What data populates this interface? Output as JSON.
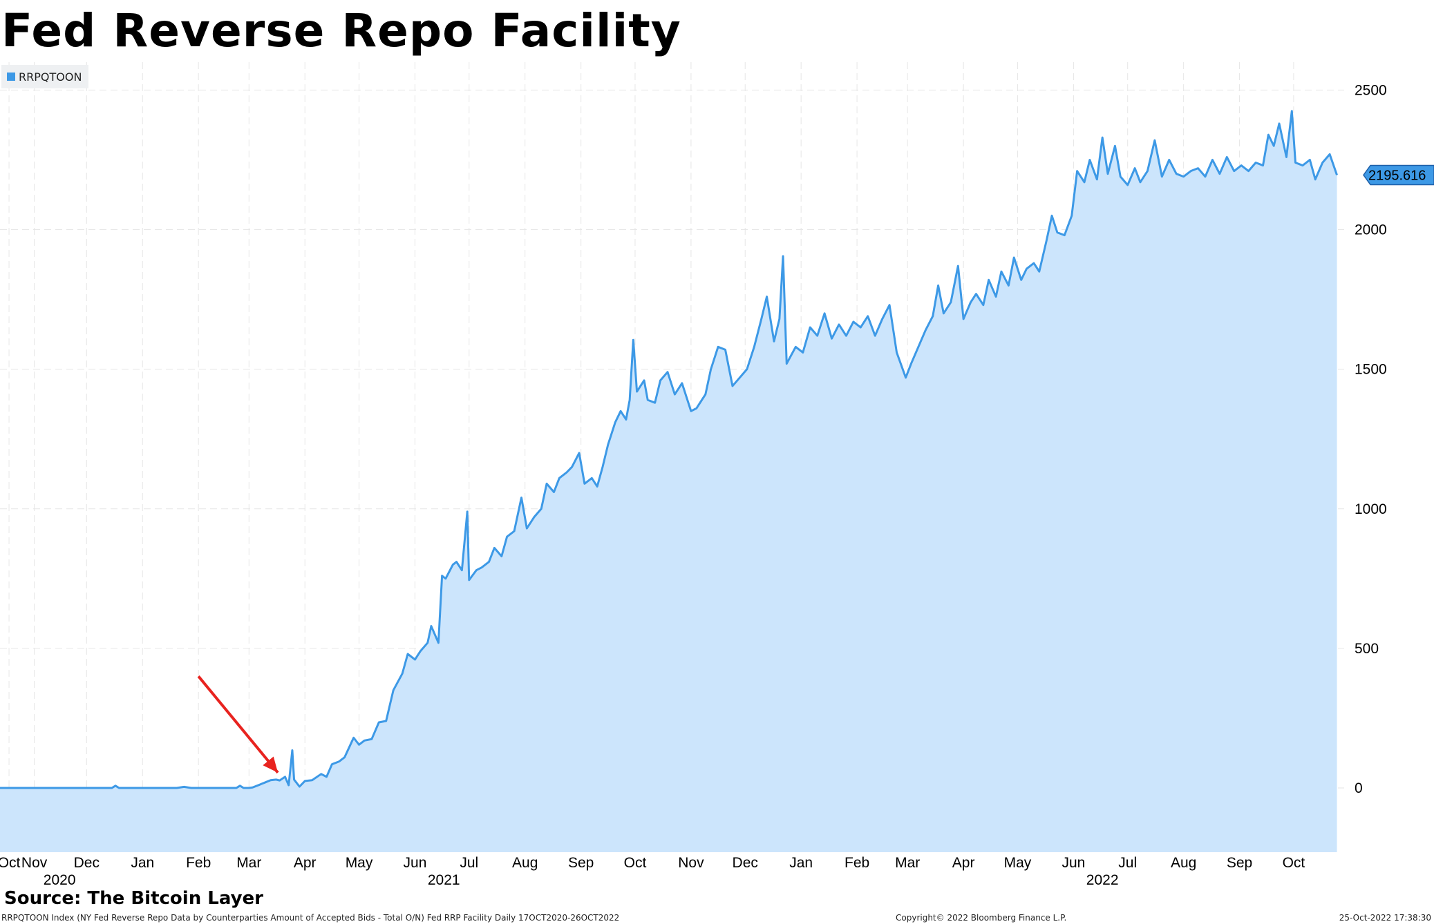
{
  "title": "Fed Reverse Repo Facility",
  "legend": {
    "label": "RRPQTOON",
    "color": "#3d99e6"
  },
  "source": "Source: The Bitcoin Layer",
  "footer": {
    "description": "RRPQTOON Index (NY Fed Reverse Repo Data by Counterparties Amount of Accepted Bids - Total O/N) Fed RRP Facility  Daily 17OCT2020-26OCT2022",
    "copyright": "Copyright© 2022 Bloomberg Finance L.P.",
    "timestamp": "25-Oct-2022 17:38:30"
  },
  "chart_data": {
    "type": "area",
    "series": [
      {
        "name": "RRPQTOON",
        "color": "#3d99e6",
        "fill": "#cce5fc"
      }
    ],
    "x_ticks": [
      {
        "label": "Oct",
        "date": "2020-10-19"
      },
      {
        "label": "Nov",
        "date": "2020-11-02"
      },
      {
        "label": "Dec",
        "date": "2020-12-01"
      },
      {
        "label": "Jan",
        "date": "2021-01-01"
      },
      {
        "label": "Feb",
        "date": "2021-02-01"
      },
      {
        "label": "Mar",
        "date": "2021-03-01"
      },
      {
        "label": "Apr",
        "date": "2021-04-01"
      },
      {
        "label": "May",
        "date": "2021-05-01"
      },
      {
        "label": "Jun",
        "date": "2021-06-01"
      },
      {
        "label": "Jul",
        "date": "2021-07-01"
      },
      {
        "label": "Aug",
        "date": "2021-08-01"
      },
      {
        "label": "Sep",
        "date": "2021-09-01"
      },
      {
        "label": "Oct",
        "date": "2021-10-01"
      },
      {
        "label": "Nov",
        "date": "2021-11-01"
      },
      {
        "label": "Dec",
        "date": "2021-12-01"
      },
      {
        "label": "Jan",
        "date": "2022-01-01"
      },
      {
        "label": "Feb",
        "date": "2022-02-01"
      },
      {
        "label": "Mar",
        "date": "2022-03-01"
      },
      {
        "label": "Apr",
        "date": "2022-04-01"
      },
      {
        "label": "May",
        "date": "2022-05-01"
      },
      {
        "label": "Jun",
        "date": "2022-06-01"
      },
      {
        "label": "Jul",
        "date": "2022-07-01"
      },
      {
        "label": "Aug",
        "date": "2022-08-01"
      },
      {
        "label": "Sep",
        "date": "2022-09-01"
      },
      {
        "label": "Oct",
        "date": "2022-10-01"
      }
    ],
    "year_labels": [
      {
        "label": "2020",
        "date": "2020-11-16"
      },
      {
        "label": "2021",
        "date": "2021-06-17"
      },
      {
        "label": "2022",
        "date": "2022-06-17"
      }
    ],
    "y_ticks": [
      0,
      500,
      1000,
      1500,
      2000,
      2500
    ],
    "xlim": [
      "2020-10-14",
      "2022-10-29"
    ],
    "ylim": [
      -230,
      2600
    ],
    "y_axis_side": "right",
    "grid": true,
    "legend_position": "top-left",
    "last_value": 2195.616,
    "annotations": [
      {
        "type": "arrow",
        "color": "#e8231f",
        "from": [
          "2021-02-01",
          400
        ],
        "to": [
          "2021-03-17",
          55
        ]
      }
    ],
    "points": [
      [
        "2020-10-14",
        0
      ],
      [
        "2020-12-15",
        0
      ],
      [
        "2020-12-17",
        8
      ],
      [
        "2020-12-19",
        0
      ],
      [
        "2021-01-20",
        0
      ],
      [
        "2021-01-24",
        4
      ],
      [
        "2021-01-28",
        0
      ],
      [
        "2021-02-22",
        0
      ],
      [
        "2021-02-24",
        8
      ],
      [
        "2021-02-26",
        0
      ],
      [
        "2021-03-01",
        0
      ],
      [
        "2021-03-03",
        2
      ],
      [
        "2021-03-07",
        12
      ],
      [
        "2021-03-10",
        20
      ],
      [
        "2021-03-13",
        28
      ],
      [
        "2021-03-16",
        30
      ],
      [
        "2021-03-18",
        27
      ],
      [
        "2021-03-21",
        40
      ],
      [
        "2021-03-23",
        10
      ],
      [
        "2021-03-25",
        135
      ],
      [
        "2021-03-26",
        30
      ],
      [
        "2021-03-29",
        5
      ],
      [
        "2021-04-01",
        25
      ],
      [
        "2021-04-05",
        28
      ],
      [
        "2021-04-10",
        50
      ],
      [
        "2021-04-13",
        40
      ],
      [
        "2021-04-16",
        85
      ],
      [
        "2021-04-20",
        95
      ],
      [
        "2021-04-23",
        110
      ],
      [
        "2021-04-28",
        180
      ],
      [
        "2021-05-01",
        155
      ],
      [
        "2021-05-04",
        170
      ],
      [
        "2021-05-08",
        175
      ],
      [
        "2021-05-12",
        235
      ],
      [
        "2021-05-16",
        240
      ],
      [
        "2021-05-20",
        350
      ],
      [
        "2021-05-25",
        410
      ],
      [
        "2021-05-28",
        480
      ],
      [
        "2021-06-01",
        460
      ],
      [
        "2021-06-04",
        490
      ],
      [
        "2021-06-08",
        520
      ],
      [
        "2021-06-10",
        580
      ],
      [
        "2021-06-14",
        520
      ],
      [
        "2021-06-16",
        760
      ],
      [
        "2021-06-18",
        750
      ],
      [
        "2021-06-22",
        800
      ],
      [
        "2021-06-24",
        810
      ],
      [
        "2021-06-27",
        780
      ],
      [
        "2021-06-30",
        990
      ],
      [
        "2021-07-01",
        745
      ],
      [
        "2021-07-05",
        780
      ],
      [
        "2021-07-08",
        790
      ],
      [
        "2021-07-12",
        810
      ],
      [
        "2021-07-15",
        860
      ],
      [
        "2021-07-19",
        830
      ],
      [
        "2021-07-22",
        900
      ],
      [
        "2021-07-26",
        920
      ],
      [
        "2021-07-30",
        1040
      ],
      [
        "2021-08-02",
        930
      ],
      [
        "2021-08-06",
        970
      ],
      [
        "2021-08-10",
        1000
      ],
      [
        "2021-08-13",
        1090
      ],
      [
        "2021-08-17",
        1060
      ],
      [
        "2021-08-20",
        1110
      ],
      [
        "2021-08-24",
        1130
      ],
      [
        "2021-08-27",
        1150
      ],
      [
        "2021-08-31",
        1200
      ],
      [
        "2021-09-03",
        1090
      ],
      [
        "2021-09-07",
        1110
      ],
      [
        "2021-09-10",
        1080
      ],
      [
        "2021-09-13",
        1150
      ],
      [
        "2021-09-16",
        1230
      ],
      [
        "2021-09-20",
        1310
      ],
      [
        "2021-09-23",
        1350
      ],
      [
        "2021-09-26",
        1320
      ],
      [
        "2021-09-28",
        1390
      ],
      [
        "2021-09-30",
        1605
      ],
      [
        "2021-10-02",
        1420
      ],
      [
        "2021-10-06",
        1460
      ],
      [
        "2021-10-08",
        1390
      ],
      [
        "2021-10-12",
        1380
      ],
      [
        "2021-10-15",
        1460
      ],
      [
        "2021-10-19",
        1490
      ],
      [
        "2021-10-23",
        1410
      ],
      [
        "2021-10-27",
        1450
      ],
      [
        "2021-11-01",
        1350
      ],
      [
        "2021-11-04",
        1360
      ],
      [
        "2021-11-09",
        1410
      ],
      [
        "2021-11-12",
        1500
      ],
      [
        "2021-11-16",
        1580
      ],
      [
        "2021-11-20",
        1570
      ],
      [
        "2021-11-24",
        1440
      ],
      [
        "2021-11-28",
        1470
      ],
      [
        "2021-12-02",
        1500
      ],
      [
        "2021-12-06",
        1580
      ],
      [
        "2021-12-10",
        1680
      ],
      [
        "2021-12-13",
        1760
      ],
      [
        "2021-12-17",
        1600
      ],
      [
        "2021-12-20",
        1680
      ],
      [
        "2021-12-22",
        1905
      ],
      [
        "2021-12-24",
        1520
      ],
      [
        "2021-12-29",
        1580
      ],
      [
        "2022-01-02",
        1560
      ],
      [
        "2022-01-06",
        1650
      ],
      [
        "2022-01-10",
        1620
      ],
      [
        "2022-01-14",
        1700
      ],
      [
        "2022-01-18",
        1610
      ],
      [
        "2022-01-22",
        1660
      ],
      [
        "2022-01-26",
        1620
      ],
      [
        "2022-01-30",
        1670
      ],
      [
        "2022-02-03",
        1650
      ],
      [
        "2022-02-07",
        1690
      ],
      [
        "2022-02-11",
        1620
      ],
      [
        "2022-02-15",
        1680
      ],
      [
        "2022-02-19",
        1730
      ],
      [
        "2022-02-23",
        1560
      ],
      [
        "2022-02-28",
        1470
      ],
      [
        "2022-03-03",
        1520
      ],
      [
        "2022-03-07",
        1580
      ],
      [
        "2022-03-11",
        1640
      ],
      [
        "2022-03-15",
        1690
      ],
      [
        "2022-03-18",
        1800
      ],
      [
        "2022-03-21",
        1700
      ],
      [
        "2022-03-25",
        1740
      ],
      [
        "2022-03-29",
        1870
      ],
      [
        "2022-04-01",
        1680
      ],
      [
        "2022-04-05",
        1740
      ],
      [
        "2022-04-08",
        1770
      ],
      [
        "2022-04-12",
        1730
      ],
      [
        "2022-04-15",
        1820
      ],
      [
        "2022-04-19",
        1760
      ],
      [
        "2022-04-22",
        1850
      ],
      [
        "2022-04-26",
        1800
      ],
      [
        "2022-04-29",
        1900
      ],
      [
        "2022-05-03",
        1820
      ],
      [
        "2022-05-06",
        1860
      ],
      [
        "2022-05-10",
        1880
      ],
      [
        "2022-05-13",
        1850
      ],
      [
        "2022-05-17",
        1960
      ],
      [
        "2022-05-20",
        2050
      ],
      [
        "2022-05-23",
        1990
      ],
      [
        "2022-05-27",
        1980
      ],
      [
        "2022-05-31",
        2050
      ],
      [
        "2022-06-03",
        2210
      ],
      [
        "2022-06-07",
        2170
      ],
      [
        "2022-06-10",
        2250
      ],
      [
        "2022-06-14",
        2180
      ],
      [
        "2022-06-17",
        2330
      ],
      [
        "2022-06-20",
        2200
      ],
      [
        "2022-06-24",
        2300
      ],
      [
        "2022-06-27",
        2190
      ],
      [
        "2022-07-01",
        2160
      ],
      [
        "2022-07-05",
        2220
      ],
      [
        "2022-07-08",
        2170
      ],
      [
        "2022-07-12",
        2210
      ],
      [
        "2022-07-16",
        2320
      ],
      [
        "2022-07-20",
        2190
      ],
      [
        "2022-07-24",
        2250
      ],
      [
        "2022-07-28",
        2200
      ],
      [
        "2022-08-01",
        2190
      ],
      [
        "2022-08-05",
        2210
      ],
      [
        "2022-08-09",
        2220
      ],
      [
        "2022-08-13",
        2190
      ],
      [
        "2022-08-17",
        2250
      ],
      [
        "2022-08-21",
        2200
      ],
      [
        "2022-08-25",
        2260
      ],
      [
        "2022-08-29",
        2210
      ],
      [
        "2022-09-02",
        2230
      ],
      [
        "2022-09-06",
        2210
      ],
      [
        "2022-09-10",
        2240
      ],
      [
        "2022-09-14",
        2230
      ],
      [
        "2022-09-17",
        2340
      ],
      [
        "2022-09-20",
        2300
      ],
      [
        "2022-09-23",
        2380
      ],
      [
        "2022-09-27",
        2260
      ],
      [
        "2022-09-30",
        2425
      ],
      [
        "2022-10-02",
        2240
      ],
      [
        "2022-10-06",
        2230
      ],
      [
        "2022-10-10",
        2250
      ],
      [
        "2022-10-13",
        2180
      ],
      [
        "2022-10-17",
        2240
      ],
      [
        "2022-10-21",
        2270
      ],
      [
        "2022-10-25",
        2195.616
      ]
    ]
  }
}
